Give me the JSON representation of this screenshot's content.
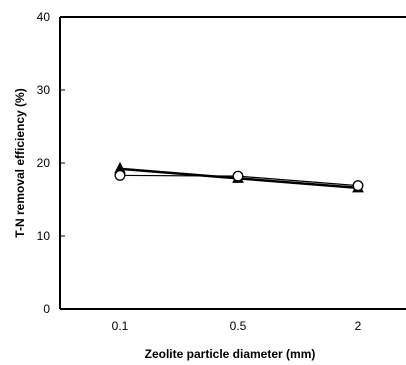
{
  "chart_data": {
    "type": "line",
    "categories": [
      "0.1",
      "0.5",
      "2"
    ],
    "xlabel": "Zeolite particle diameter (mm)",
    "ylabel": "T-N removal efficiency (%)",
    "ylim": [
      0,
      40
    ],
    "y_ticks": [
      0,
      10,
      20,
      30,
      40
    ],
    "grid": false,
    "legend": "none",
    "series": [
      {
        "marker": "triangle-filled",
        "color": "#000000",
        "values": [
          19.2,
          17.9,
          16.6
        ]
      },
      {
        "marker": "circle-open",
        "color": "#000000",
        "values": [
          18.3,
          18.2,
          16.9
        ]
      }
    ]
  }
}
